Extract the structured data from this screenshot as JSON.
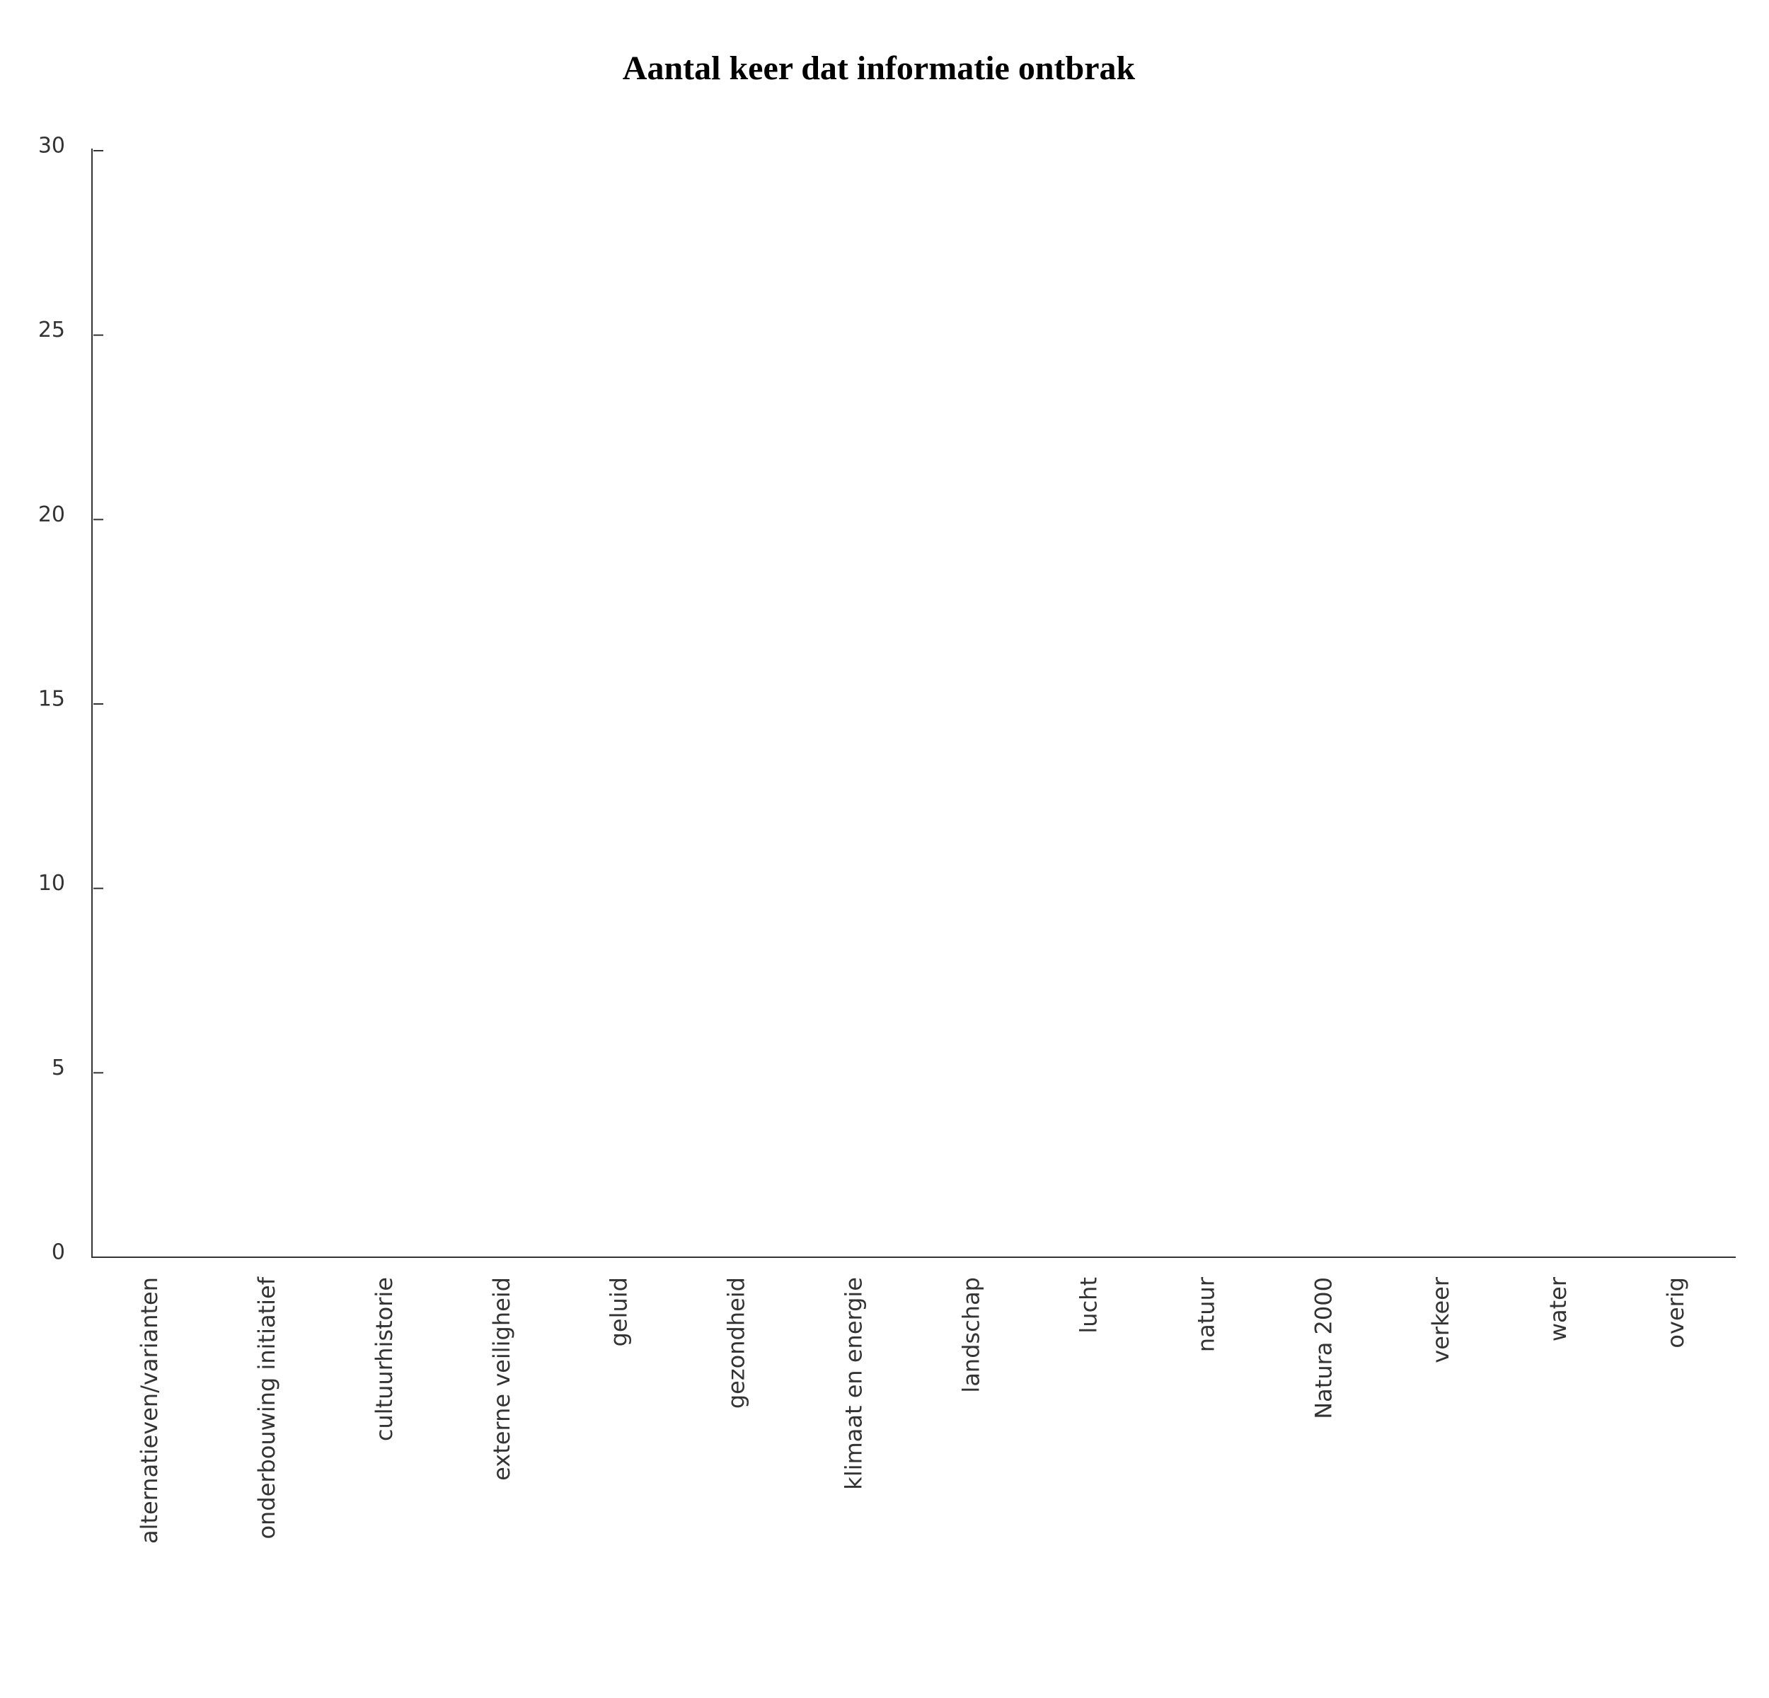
{
  "chart_data": {
    "type": "bar",
    "title": "Aantal keer dat informatie ontbrak",
    "categories": [
      "alternatieven/varianten",
      "onderbouwing initiatief",
      "cultuurhistorie",
      "externe veiligheid",
      "geluid",
      "gezondheid",
      "klimaat en energie",
      "landschap",
      "lucht",
      "natuur",
      "Natura 2000",
      "verkeer",
      "water",
      "overig"
    ],
    "ylim": [
      0,
      30
    ],
    "yticks": [
      0,
      5,
      10,
      15,
      20,
      25,
      30
    ],
    "grid": false
  }
}
